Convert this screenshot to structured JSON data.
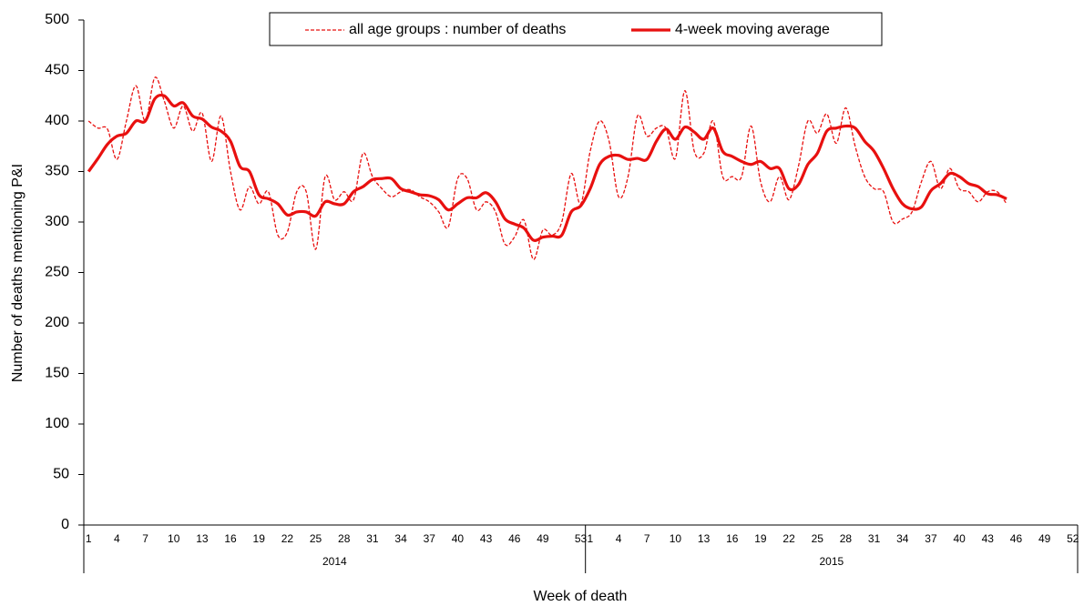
{
  "chart_data": {
    "type": "line",
    "legend": "top",
    "y_label": "Number of deaths mentioning P&I",
    "x_label": "Week of death",
    "category_groups": [
      {
        "label": "2014",
        "size": 53
      },
      {
        "label": "2015",
        "size": 52
      }
    ],
    "categories": [
      "1",
      null,
      null,
      "4",
      null,
      null,
      "7",
      null,
      null,
      "10",
      null,
      null,
      "13",
      null,
      null,
      "16",
      null,
      null,
      "19",
      null,
      null,
      "22",
      null,
      null,
      "25",
      null,
      null,
      "28",
      null,
      null,
      "31",
      null,
      null,
      "34",
      null,
      null,
      "37",
      null,
      null,
      "40",
      null,
      null,
      "43",
      null,
      null,
      "46",
      null,
      null,
      "49",
      null,
      null,
      null,
      "53",
      "1",
      null,
      null,
      "4",
      null,
      null,
      "7",
      null,
      null,
      "10",
      null,
      null,
      "13",
      null,
      null,
      "16",
      null,
      null,
      "19",
      null,
      null,
      "22",
      null,
      null,
      "25",
      null,
      null,
      "28",
      null,
      null,
      "31",
      null,
      null,
      "34",
      null,
      null,
      "37",
      null,
      null,
      "40",
      null,
      null,
      "43",
      null,
      null,
      "46",
      null,
      null,
      "49",
      null,
      null,
      "52"
    ],
    "ylim": [
      0,
      500
    ],
    "yticks": [
      0,
      50,
      100,
      150,
      200,
      250,
      300,
      350,
      400,
      450,
      500
    ],
    "series": [
      {
        "name": "all age groups : number of deaths",
        "color": "#e8100f",
        "dashed": true,
        "values": [
          400,
          393,
          392,
          362,
          400,
          435,
          400,
          443,
          420,
          393,
          415,
          390,
          408,
          360,
          405,
          350,
          312,
          335,
          318,
          330,
          287,
          290,
          330,
          330,
          273,
          345,
          322,
          330,
          322,
          368,
          345,
          333,
          325,
          330,
          332,
          325,
          320,
          310,
          295,
          343,
          343,
          312,
          320,
          310,
          278,
          285,
          302,
          263,
          292,
          287,
          300,
          348,
          318,
          370,
          400,
          380,
          325,
          345,
          405,
          385,
          393,
          393,
          363,
          430,
          370,
          368,
          400,
          345,
          345,
          345,
          395,
          340,
          320,
          345,
          322,
          355,
          400,
          388,
          407,
          378,
          413,
          375,
          345,
          333,
          330,
          300,
          303,
          310,
          340,
          360,
          333,
          353,
          333,
          330,
          320,
          330,
          330,
          318,
          null,
          null,
          null,
          null,
          null,
          null,
          null
        ]
      },
      {
        "name": "4-week moving average",
        "color": "#e8100f",
        "dashed": false,
        "values": [
          350,
          363,
          377,
          385,
          388,
          400,
          400,
          422,
          425,
          415,
          418,
          405,
          402,
          394,
          390,
          380,
          355,
          350,
          327,
          323,
          318,
          307,
          310,
          310,
          306,
          320,
          318,
          318,
          330,
          335,
          342,
          343,
          343,
          333,
          330,
          327,
          326,
          322,
          312,
          318,
          324,
          324,
          329,
          320,
          303,
          298,
          294,
          282,
          285,
          286,
          287,
          310,
          316,
          333,
          357,
          365,
          366,
          362,
          363,
          362,
          380,
          392,
          382,
          394,
          389,
          382,
          393,
          370,
          365,
          360,
          357,
          360,
          353,
          353,
          333,
          337,
          357,
          368,
          390,
          393,
          395,
          393,
          380,
          370,
          353,
          333,
          318,
          313,
          315,
          331,
          338,
          348,
          345,
          338,
          335,
          328,
          327,
          323,
          null,
          null,
          null,
          null,
          null,
          null,
          null
        ]
      }
    ]
  }
}
